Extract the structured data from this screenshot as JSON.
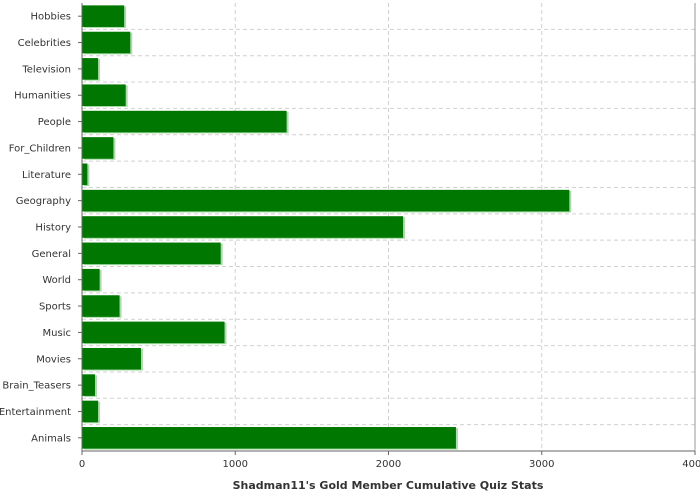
{
  "chart_data": {
    "type": "bar",
    "orientation": "horizontal",
    "title": "",
    "xlabel": "Shadman11's Gold Member Cumulative Quiz Stats",
    "ylabel": "",
    "categories": [
      "Hobbies",
      "Celebrities",
      "Television",
      "Humanities",
      "People",
      "For_Children",
      "Literature",
      "Geography",
      "History",
      "General",
      "World",
      "Sports",
      "Music",
      "Movies",
      "Brain_Teasers",
      "Entertainment",
      "Animals"
    ],
    "values": [
      275,
      315,
      105,
      285,
      1335,
      205,
      35,
      3180,
      2095,
      905,
      115,
      245,
      930,
      385,
      85,
      105,
      2440
    ],
    "xlim": [
      0,
      4000
    ],
    "xticks": [
      "0",
      "1000",
      "2000",
      "3000",
      "4000"
    ],
    "grid": true,
    "bar_color": "#007700",
    "bar_highlight": "#aaddaa"
  }
}
